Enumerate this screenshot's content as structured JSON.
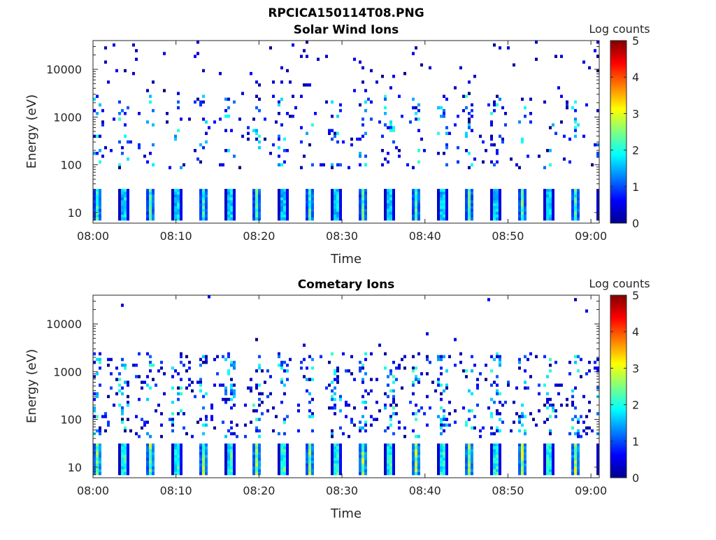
{
  "figure_title": "RPCICA150114T08.PNG",
  "colorbar": {
    "label": "Log counts",
    "ticks": [
      "0",
      "1",
      "2",
      "3",
      "4",
      "5"
    ]
  },
  "chart_data": [
    {
      "type": "heatmap",
      "title": "Solar Wind Ions",
      "xlabel": "Time",
      "ylabel": "Energy (eV)",
      "x_ticks": [
        "08:00",
        "08:10",
        "08:20",
        "08:30",
        "08:40",
        "08:50",
        "09:00"
      ],
      "y_ticks": [
        "10",
        "100",
        "1000",
        "10000"
      ],
      "y_scale": "log",
      "xlim": [
        "08:00",
        "09:01"
      ],
      "ylim": [
        6,
        40000
      ],
      "colorbar_range": [
        0,
        5
      ],
      "low_energy_band_eV": [
        7,
        30
      ],
      "low_energy_band_peak_log_counts": 2.4,
      "mid_energy_scatter_eV": [
        80,
        3000
      ],
      "sweep_period_min": 3.2
    },
    {
      "type": "heatmap",
      "title": "Cometary Ions",
      "xlabel": "Time",
      "ylabel": "Energy (eV)",
      "x_ticks": [
        "08:00",
        "08:10",
        "08:20",
        "08:30",
        "08:40",
        "08:50",
        "09:00"
      ],
      "y_ticks": [
        "10",
        "100",
        "1000",
        "10000"
      ],
      "y_scale": "log",
      "xlim": [
        "08:00",
        "09:01"
      ],
      "ylim": [
        6,
        40000
      ],
      "colorbar_range": [
        0,
        5
      ],
      "low_energy_band_eV": [
        7,
        30
      ],
      "low_energy_band_peak_log_counts": 3.0,
      "mid_energy_scatter_eV": [
        40,
        2500
      ],
      "sweep_period_min": 3.2
    }
  ]
}
